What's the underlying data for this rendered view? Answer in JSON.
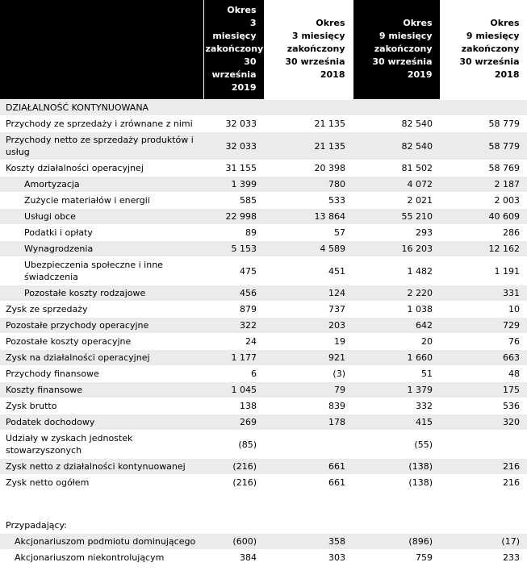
{
  "chart_data": {
    "type": "table",
    "layout": {
      "legend": "none",
      "grid": "row-striped"
    },
    "colors": {
      "header_bg": "#000000",
      "header_fg": "#ffffff",
      "shaded_row_bg": "#ebebeb",
      "text": "#000000"
    },
    "columns": [
      {
        "id": "q3-2019",
        "header": "Okres\n3 miesięcy\nzakończony\n30 września\n2019",
        "dark": true
      },
      {
        "id": "q3-2018",
        "header": "Okres\n3 miesięcy\nzakończony\n30 września 2018",
        "dark": false
      },
      {
        "id": "9m-2019",
        "header": "Okres\n9 miesięcy\nzakończony\n30 września\n2019",
        "dark": true
      },
      {
        "id": "9m-2018",
        "header": "Okres\n9 miesięcy\nzakończony\n30 września 2018",
        "dark": false
      }
    ],
    "rows": [
      {
        "label": "DZIAŁALNOŚĆ KONTYNUOWANA",
        "values": [
          "",
          "",
          "",
          ""
        ],
        "indent": 0,
        "shaded": true
      },
      {
        "label": "Przychody ze sprzedaży i zrównane z nimi",
        "values": [
          "32 033",
          "21 135",
          "82 540",
          "58 779"
        ],
        "indent": 0,
        "shaded": false
      },
      {
        "label": "Przychody netto ze sprzedaży produktów i usług",
        "values": [
          "32 033",
          "21 135",
          "82 540",
          "58 779"
        ],
        "indent": 0,
        "shaded": true
      },
      {
        "label": "Koszty działalności operacyjnej",
        "values": [
          "31 155",
          "20 398",
          "81 502",
          "58 769"
        ],
        "indent": 0,
        "shaded": false
      },
      {
        "label": "Amortyzacja",
        "values": [
          "1 399",
          "780",
          "4 072",
          "2 187"
        ],
        "indent": 2,
        "shaded": true
      },
      {
        "label": "Zużycie materiałów i energii",
        "values": [
          "585",
          "533",
          "2 021",
          "2 003"
        ],
        "indent": 2,
        "shaded": false
      },
      {
        "label": "Usługi obce",
        "values": [
          "22 998",
          "13 864",
          "55 210",
          "40 609"
        ],
        "indent": 2,
        "shaded": true
      },
      {
        "label": "Podatki i opłaty",
        "values": [
          "89",
          "57",
          "293",
          "286"
        ],
        "indent": 2,
        "shaded": false
      },
      {
        "label": "Wynagrodzenia",
        "values": [
          "5 153",
          "4 589",
          "16 203",
          "12 162"
        ],
        "indent": 2,
        "shaded": true
      },
      {
        "label": "Ubezpieczenia społeczne i inne świadczenia",
        "values": [
          "475",
          "451",
          "1 482",
          "1 191"
        ],
        "indent": 2,
        "shaded": false
      },
      {
        "label": "Pozostałe koszty rodzajowe",
        "values": [
          "456",
          "124",
          "2 220",
          "331"
        ],
        "indent": 2,
        "shaded": true
      },
      {
        "label": "Zysk ze sprzedaży",
        "values": [
          "879",
          "737",
          "1 038",
          "10"
        ],
        "indent": 0,
        "shaded": false
      },
      {
        "label": "Pozostałe przychody operacyjne",
        "values": [
          "322",
          "203",
          "642",
          "729"
        ],
        "indent": 0,
        "shaded": true
      },
      {
        "label": "Pozostałe koszty operacyjne",
        "values": [
          "24",
          "19",
          "20",
          "76"
        ],
        "indent": 0,
        "shaded": false
      },
      {
        "label": "Zysk na działalności operacyjnej",
        "values": [
          "1 177",
          "921",
          "1 660",
          "663"
        ],
        "indent": 0,
        "shaded": true
      },
      {
        "label": "Przychody finansowe",
        "values": [
          "6",
          "(3)",
          "51",
          "48"
        ],
        "indent": 0,
        "shaded": false
      },
      {
        "label": "Koszty finansowe",
        "values": [
          "1 045",
          "79",
          "1 379",
          "175"
        ],
        "indent": 0,
        "shaded": true
      },
      {
        "label": "Zysk brutto",
        "values": [
          "138",
          "839",
          "332",
          "536"
        ],
        "indent": 0,
        "shaded": false
      },
      {
        "label": "Podatek dochodowy",
        "values": [
          "269",
          "178",
          "415",
          "320"
        ],
        "indent": 0,
        "shaded": true
      },
      {
        "label": "Udziały w zyskach jednostek stowarzyszonych",
        "values": [
          "(85)",
          "",
          "(55)",
          ""
        ],
        "indent": 0,
        "shaded": false
      },
      {
        "label": "Zysk netto z działalności kontynuowanej",
        "values": [
          "(216)",
          "661",
          "(138)",
          "216"
        ],
        "indent": 0,
        "shaded": true
      },
      {
        "label": "Zysk netto ogółem",
        "values": [
          "(216)",
          "661",
          "(138)",
          "216"
        ],
        "indent": 0,
        "shaded": false
      },
      {
        "label": "",
        "values": [
          "",
          "",
          "",
          ""
        ],
        "indent": 0,
        "shaded": false,
        "spacer": true
      },
      {
        "label": "Przypadający:",
        "values": [
          "",
          "",
          "",
          ""
        ],
        "indent": 0,
        "shaded": false
      },
      {
        "label": "Akcjonariuszom podmiotu dominującego",
        "values": [
          "(600)",
          "358",
          "(896)",
          "(17)"
        ],
        "indent": 1,
        "shaded": true
      },
      {
        "label": "Akcjonariuszom niekontrolującym",
        "values": [
          "384",
          "303",
          "759",
          "233"
        ],
        "indent": 1,
        "shaded": false
      }
    ]
  }
}
